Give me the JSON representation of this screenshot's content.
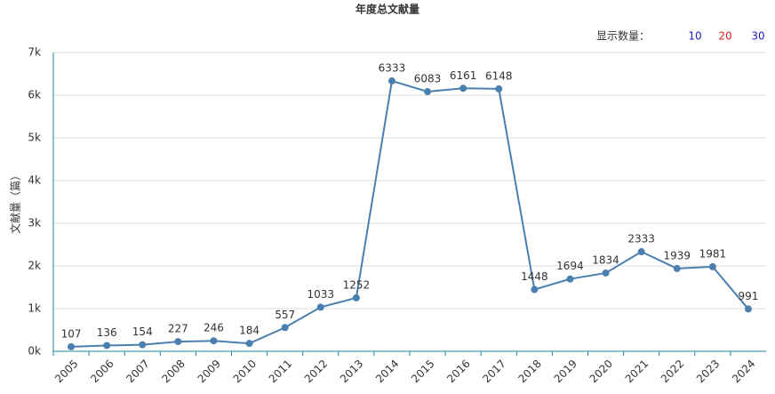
{
  "chart_data": {
    "type": "line",
    "title": "年度总文献量",
    "y_label": "文献量（篇）",
    "categories": [
      "2005",
      "2006",
      "2007",
      "2008",
      "2009",
      "2010",
      "2011",
      "2012",
      "2013",
      "2014",
      "2015",
      "2016",
      "2017",
      "2018",
      "2019",
      "2020",
      "2021",
      "2022",
      "2023",
      "2024"
    ],
    "values": [
      107,
      136,
      154,
      227,
      246,
      184,
      557,
      1033,
      1252,
      6333,
      6083,
      6161,
      6148,
      1448,
      1694,
      1834,
      2333,
      1939,
      1981,
      991
    ],
    "color": "#4a7fb0",
    "ylim": [
      0,
      7000
    ],
    "yticks": [
      {
        "value": 0,
        "label": "0k"
      },
      {
        "value": 1000,
        "label": "1k"
      },
      {
        "value": 2000,
        "label": "2k"
      },
      {
        "value": 3000,
        "label": "3k"
      },
      {
        "value": 4000,
        "label": "4k"
      },
      {
        "value": 5000,
        "label": "5k"
      },
      {
        "value": 6000,
        "label": "6k"
      },
      {
        "value": 7000,
        "label": "7k"
      }
    ],
    "grid": true
  },
  "controls": {
    "label": "显示数量：",
    "options": [
      "10",
      "20",
      "30"
    ]
  }
}
